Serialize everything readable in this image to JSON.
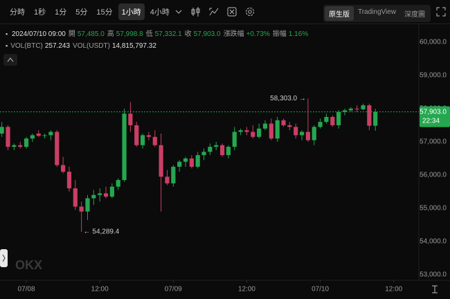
{
  "toolbar": {
    "intervals": [
      "分時",
      "1秒",
      "1分",
      "5分",
      "15分",
      "1小時",
      "4小時"
    ],
    "selected_interval": 5,
    "views": [
      "原生版",
      "TradingView",
      "深度圖"
    ],
    "selected_view": 0
  },
  "header": {
    "time": "2024/07/10 09:00",
    "items": [
      {
        "label": "開",
        "value": "57,485.0"
      },
      {
        "label": "高",
        "value": "57,998.8"
      },
      {
        "label": "低",
        "value": "57,332.1"
      },
      {
        "label": "收",
        "value": "57,903.0"
      },
      {
        "label": "漲跌幅",
        "value": "+0.73%"
      },
      {
        "label": "振幅",
        "value": "1.16%"
      }
    ],
    "volume": [
      {
        "label": "VOL(BTC)",
        "value": "257.243"
      },
      {
        "label": "VOL(USDT)",
        "value": "14,815,797.32"
      }
    ]
  },
  "chart_data": {
    "type": "candlestick",
    "watermark": "OKX",
    "x": [
      -4,
      -3,
      -2,
      -1,
      0,
      1,
      2,
      3,
      4,
      5,
      6,
      7,
      8,
      9,
      10,
      11,
      12,
      13,
      14,
      15,
      16,
      17,
      18,
      19,
      20,
      21,
      22,
      23,
      24,
      25,
      26,
      27,
      28,
      29,
      30,
      31,
      32,
      33,
      34,
      35,
      36,
      37,
      38,
      39,
      40,
      41,
      42,
      43,
      44,
      45,
      46,
      47,
      48,
      49,
      50,
      51,
      52,
      53,
      54,
      55,
      56,
      57
    ],
    "open": [
      57250,
      57450,
      56850,
      56900,
      56850,
      57100,
      57250,
      57180,
      57200,
      57300,
      56300,
      56100,
      55600,
      55050,
      54900,
      55300,
      55400,
      55450,
      55350,
      55650,
      55850,
      57850,
      57500,
      56900,
      57200,
      57150,
      56900,
      55950,
      55750,
      56250,
      56400,
      56500,
      56250,
      56600,
      56700,
      56850,
      56900,
      56600,
      56850,
      57300,
      57350,
      57300,
      57150,
      57400,
      57550,
      57100,
      57650,
      57500,
      57450,
      57200,
      57300,
      57050,
      57450,
      57600,
      57750,
      57500,
      57900,
      57950,
      58000,
      57980,
      58100,
      57485
    ],
    "high": [
      57600,
      57500,
      56950,
      57000,
      57150,
      57250,
      57350,
      57250,
      57350,
      57350,
      56550,
      56250,
      55850,
      55200,
      55400,
      55550,
      55600,
      55650,
      55750,
      55900,
      58000,
      58200,
      57600,
      57250,
      57300,
      57350,
      57250,
      56150,
      56300,
      56450,
      56550,
      56600,
      56700,
      56800,
      56950,
      57000,
      56950,
      56900,
      57450,
      57400,
      57450,
      57500,
      57550,
      57650,
      57700,
      57750,
      57700,
      57600,
      57550,
      57350,
      58303,
      57500,
      57700,
      57850,
      57800,
      57950,
      58000,
      58050,
      58100,
      58150,
      58150,
      57998.8
    ],
    "low": [
      57150,
      56750,
      56750,
      56800,
      56800,
      57000,
      57150,
      57100,
      57050,
      56250,
      56050,
      55500,
      54950,
      54289.4,
      54650,
      55100,
      55200,
      55300,
      55300,
      55550,
      55800,
      57300,
      56850,
      56800,
      57050,
      56850,
      54900,
      55700,
      55650,
      56100,
      56250,
      56200,
      56200,
      56450,
      56600,
      56750,
      56550,
      56500,
      56750,
      57200,
      57200,
      57100,
      57100,
      57350,
      57050,
      57000,
      57450,
      57350,
      57100,
      57050,
      57000,
      56900,
      57400,
      57550,
      57450,
      57400,
      57800,
      57900,
      57900,
      57950,
      57350,
      57332.1
    ],
    "close": [
      57450,
      56850,
      56900,
      56850,
      57100,
      57200,
      57180,
      57200,
      57300,
      56300,
      56100,
      55600,
      55050,
      54900,
      55300,
      55400,
      55450,
      55350,
      55650,
      55850,
      57850,
      57500,
      56900,
      57200,
      57150,
      56900,
      55950,
      55750,
      56250,
      56400,
      56500,
      56250,
      56600,
      56700,
      56850,
      56900,
      56600,
      56850,
      57300,
      57350,
      57300,
      57150,
      57400,
      57550,
      57100,
      57650,
      57500,
      57450,
      57200,
      57300,
      57050,
      57450,
      57600,
      57750,
      57500,
      57900,
      57950,
      58000,
      57980,
      58100,
      57485,
      57903
    ],
    "up_color": "#25a750",
    "down_color": "#ca3f64",
    "xlim": [
      -4.3,
      64.1
    ],
    "xticks": [
      {
        "value": 0,
        "label": "07/08"
      },
      {
        "value": 12,
        "label": "12:00"
      },
      {
        "value": 24,
        "label": "07/09"
      },
      {
        "value": 36,
        "label": "12:00"
      },
      {
        "value": 48,
        "label": "07/10"
      },
      {
        "value": 60,
        "label": "12:00"
      }
    ],
    "ylim": [
      52830,
      60230
    ],
    "yticks": [
      {
        "value": 53000,
        "label": "53,000.0"
      },
      {
        "value": 54000,
        "label": "54,000.0"
      },
      {
        "value": 55000,
        "label": "55,000.0"
      },
      {
        "value": 56000,
        "label": "56,000.0"
      },
      {
        "value": 57000,
        "label": "57,000.0"
      },
      {
        "value": 58000,
        "label": "58,000.0"
      },
      {
        "value": 59000,
        "label": "59,000.0"
      },
      {
        "value": 60000,
        "label": "60,000.0"
      }
    ],
    "grid": false,
    "last_price": {
      "value": 57903,
      "label": "57,903.0"
    },
    "countdown": "22:34",
    "high_label": {
      "value": 58303,
      "label": "58,303.0 →"
    },
    "low_label": {
      "value": 54289.4,
      "label": "← 54,289.4"
    }
  }
}
